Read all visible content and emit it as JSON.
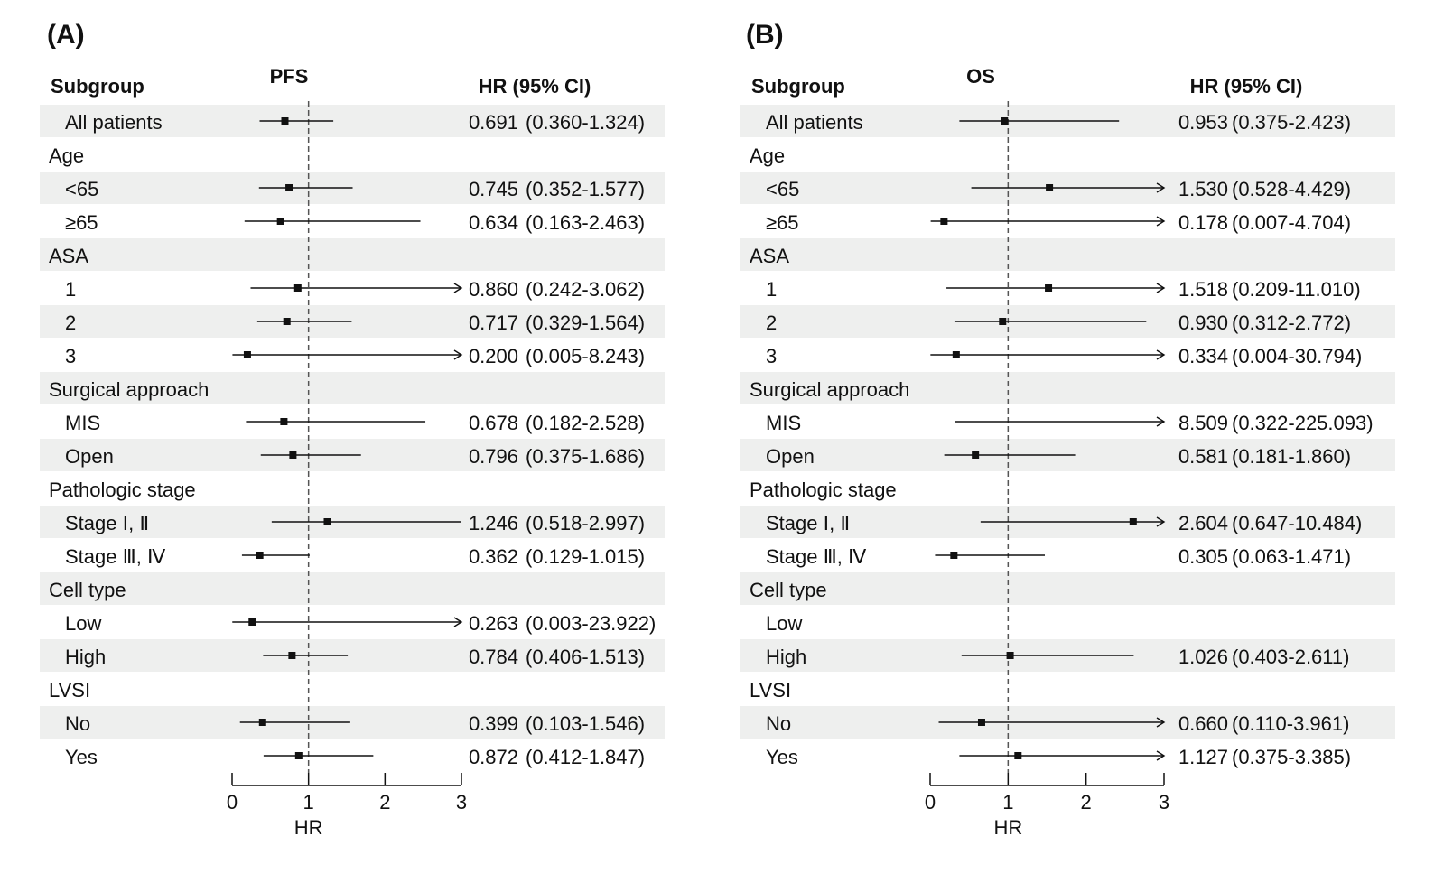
{
  "chart_data": [
    {
      "type": "forest",
      "panel_label": "(A)",
      "title": "PFS",
      "col_subgroup": "Subgroup",
      "col_hr": "HR (95% CI)",
      "xlabel": "HR",
      "xlim": [
        0,
        3
      ],
      "xticks": [
        0,
        1,
        2,
        3
      ],
      "tick_labels": [
        "0",
        "1",
        "2",
        "3"
      ],
      "reference_line": 1,
      "rows": [
        {
          "label": "All patients",
          "kind": "item",
          "hr": 0.691,
          "lo": 0.36,
          "hi": 1.324,
          "hr_text": "0.691",
          "ci_text": "(0.360-1.324)"
        },
        {
          "label": "Age",
          "kind": "header"
        },
        {
          "label": "<65",
          "kind": "item",
          "hr": 0.745,
          "lo": 0.352,
          "hi": 1.577,
          "hr_text": "0.745",
          "ci_text": "(0.352-1.577)"
        },
        {
          "label": "≥65",
          "kind": "item",
          "hr": 0.634,
          "lo": 0.163,
          "hi": 2.463,
          "hr_text": "0.634",
          "ci_text": "(0.163-2.463)"
        },
        {
          "label": "ASA",
          "kind": "header"
        },
        {
          "label": "1",
          "kind": "item",
          "hr": 0.86,
          "lo": 0.242,
          "hi": 3.062,
          "hr_text": "0.860",
          "ci_text": "(0.242-3.062)"
        },
        {
          "label": "2",
          "kind": "item",
          "hr": 0.717,
          "lo": 0.329,
          "hi": 1.564,
          "hr_text": "0.717",
          "ci_text": "(0.329-1.564)"
        },
        {
          "label": "3",
          "kind": "item",
          "hr": 0.2,
          "lo": 0.005,
          "hi": 8.243,
          "hr_text": "0.200",
          "ci_text": "(0.005-8.243)"
        },
        {
          "label": "Surgical approach",
          "kind": "header"
        },
        {
          "label": "MIS",
          "kind": "item",
          "hr": 0.678,
          "lo": 0.182,
          "hi": 2.528,
          "hr_text": "0.678",
          "ci_text": "(0.182-2.528)"
        },
        {
          "label": "Open",
          "kind": "item",
          "hr": 0.796,
          "lo": 0.375,
          "hi": 1.686,
          "hr_text": "0.796",
          "ci_text": "(0.375-1.686)"
        },
        {
          "label": "Pathologic stage",
          "kind": "header"
        },
        {
          "label": "Stage Ⅰ, Ⅱ",
          "kind": "item",
          "hr": 1.246,
          "lo": 0.518,
          "hi": 2.997,
          "hr_text": "1.246",
          "ci_text": "(0.518-2.997)"
        },
        {
          "label": "Stage Ⅲ, Ⅳ",
          "kind": "item",
          "hr": 0.362,
          "lo": 0.129,
          "hi": 1.015,
          "hr_text": "0.362",
          "ci_text": "(0.129-1.015)"
        },
        {
          "label": "Cell type",
          "kind": "header"
        },
        {
          "label": "Low",
          "kind": "item",
          "hr": 0.263,
          "lo": 0.003,
          "hi": 23.922,
          "hr_text": "0.263",
          "ci_text": "(0.003-23.922)"
        },
        {
          "label": "High",
          "kind": "item",
          "hr": 0.784,
          "lo": 0.406,
          "hi": 1.513,
          "hr_text": "0.784",
          "ci_text": "(0.406-1.513)"
        },
        {
          "label": "LVSI",
          "kind": "header"
        },
        {
          "label": "No",
          "kind": "item",
          "hr": 0.399,
          "lo": 0.103,
          "hi": 1.546,
          "hr_text": "0.399",
          "ci_text": "(0.103-1.546)"
        },
        {
          "label": "Yes",
          "kind": "item",
          "hr": 0.872,
          "lo": 0.412,
          "hi": 1.847,
          "hr_text": "0.872",
          "ci_text": "(0.412-1.847)"
        }
      ]
    },
    {
      "type": "forest",
      "panel_label": "(B)",
      "title": "OS",
      "col_subgroup": "Subgroup",
      "col_hr": "HR (95% CI)",
      "xlabel": "HR",
      "xlim": [
        0,
        3
      ],
      "xticks": [
        0,
        1,
        2,
        3
      ],
      "tick_labels": [
        "0",
        "1",
        "2",
        "3"
      ],
      "reference_line": 1,
      "rows": [
        {
          "label": "All patients",
          "kind": "item",
          "hr": 0.953,
          "lo": 0.375,
          "hi": 2.423,
          "hr_text": "0.953",
          "ci_text": "(0.375-2.423)"
        },
        {
          "label": "Age",
          "kind": "header"
        },
        {
          "label": "<65",
          "kind": "item",
          "hr": 1.53,
          "lo": 0.528,
          "hi": 4.429,
          "hr_text": "1.530",
          "ci_text": "(0.528-4.429)"
        },
        {
          "label": "≥65",
          "kind": "item",
          "hr": 0.178,
          "lo": 0.007,
          "hi": 4.704,
          "hr_text": "0.178",
          "ci_text": "(0.007-4.704)"
        },
        {
          "label": "ASA",
          "kind": "header"
        },
        {
          "label": "1",
          "kind": "item",
          "hr": 1.518,
          "lo": 0.209,
          "hi": 11.01,
          "hr_text": "1.518",
          "ci_text": "(0.209-11.010)"
        },
        {
          "label": "2",
          "kind": "item",
          "hr": 0.93,
          "lo": 0.312,
          "hi": 2.772,
          "hr_text": "0.930",
          "ci_text": "(0.312-2.772)"
        },
        {
          "label": "3",
          "kind": "item",
          "hr": 0.334,
          "lo": 0.004,
          "hi": 30.794,
          "hr_text": "0.334",
          "ci_text": "(0.004-30.794)"
        },
        {
          "label": "Surgical approach",
          "kind": "header"
        },
        {
          "label": "MIS",
          "kind": "item",
          "hr": 8.509,
          "lo": 0.322,
          "hi": 225.093,
          "hr_text": "8.509",
          "ci_text": "(0.322-225.093)"
        },
        {
          "label": "Open",
          "kind": "item",
          "hr": 0.581,
          "lo": 0.181,
          "hi": 1.86,
          "hr_text": "0.581",
          "ci_text": "(0.181-1.860)"
        },
        {
          "label": "Pathologic stage",
          "kind": "header"
        },
        {
          "label": "Stage Ⅰ, Ⅱ",
          "kind": "item",
          "hr": 2.604,
          "lo": 0.647,
          "hi": 10.484,
          "hr_text": "2.604",
          "ci_text": "(0.647-10.484)"
        },
        {
          "label": "Stage Ⅲ, Ⅳ",
          "kind": "item",
          "hr": 0.305,
          "lo": 0.063,
          "hi": 1.471,
          "hr_text": "0.305",
          "ci_text": "(0.063-1.471)"
        },
        {
          "label": "Cell type",
          "kind": "header"
        },
        {
          "label": "Low",
          "kind": "item"
        },
        {
          "label": "High",
          "kind": "item",
          "hr": 1.026,
          "lo": 0.403,
          "hi": 2.611,
          "hr_text": "1.026",
          "ci_text": "(0.403-2.611)"
        },
        {
          "label": "LVSI",
          "kind": "header"
        },
        {
          "label": "No",
          "kind": "item",
          "hr": 0.66,
          "lo": 0.11,
          "hi": 3.961,
          "hr_text": "0.660",
          "ci_text": "(0.110-3.961)"
        },
        {
          "label": "Yes",
          "kind": "item",
          "hr": 1.127,
          "lo": 0.375,
          "hi": 3.385,
          "hr_text": "1.127",
          "ci_text": "(0.375-3.385)"
        }
      ]
    }
  ],
  "colors": {
    "band": "#eeefee",
    "ink": "#111111",
    "reference_line": "#555555"
  }
}
